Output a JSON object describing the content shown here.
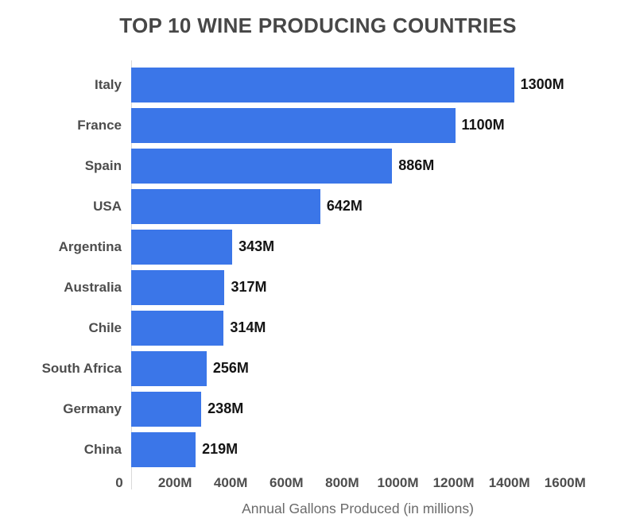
{
  "chart_data": {
    "type": "bar",
    "orientation": "horizontal",
    "title": "TOP 10 WINE PRODUCING COUNTRIES",
    "categories": [
      "Italy",
      "France",
      "Spain",
      "USA",
      "Argentina",
      "Australia",
      "Chile",
      "South Africa",
      "Germany",
      "China"
    ],
    "values": [
      1300,
      1100,
      886,
      642,
      343,
      317,
      314,
      256,
      238,
      219
    ],
    "value_labels": [
      "1300M",
      "1100M",
      "886M",
      "642M",
      "343M",
      "317M",
      "314M",
      "256M",
      "238M",
      "219M"
    ],
    "xlabel": "Annual Gallons Produced (in millions)",
    "ylabel": "",
    "x_tick_labels": [
      "0",
      "200M",
      "400M",
      "600M",
      "800M",
      "1000M",
      "1200M",
      "1400M",
      "1600M"
    ],
    "x_tick_values": [
      0,
      200,
      400,
      600,
      800,
      1000,
      1200,
      1400,
      1600
    ],
    "xlim": [
      0,
      1600
    ],
    "grid": false,
    "legend": "none",
    "bar_color": "#3b76e8",
    "background_color": "#ffffff",
    "text_colors": {
      "title": "#474747",
      "category_labels": "#4d4d4d",
      "value_labels": "#141414",
      "tick_labels": "#4d4d4d",
      "axis_label": "#6b6b6b",
      "axis_line": "#d9d9d9"
    }
  }
}
